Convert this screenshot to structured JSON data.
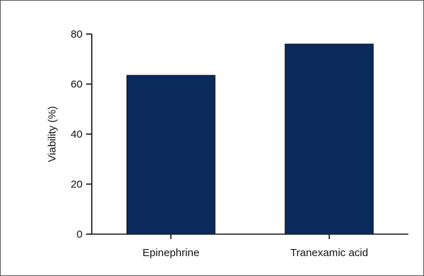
{
  "chart_data": {
    "type": "bar",
    "title": "",
    "xlabel": "",
    "ylabel": "Viability (%)",
    "categories": [
      "Epinephrine",
      "Tranexamic acid"
    ],
    "values": [
      63.5,
      76
    ],
    "ylim": [
      0,
      80
    ],
    "yticks": [
      "0",
      "20",
      "40",
      "60",
      "80"
    ],
    "grid": false,
    "legend": "none",
    "bar_color": "#0a2a5c"
  }
}
